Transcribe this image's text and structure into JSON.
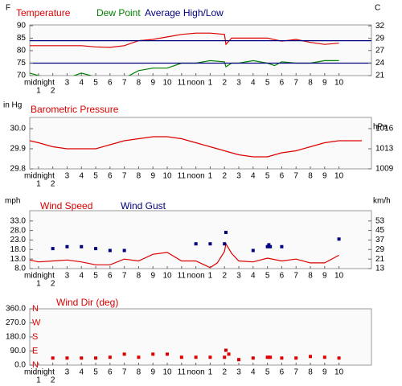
{
  "chart_data": [
    {
      "type": "line",
      "unit_left": "F",
      "unit_right": "C",
      "xlim": [
        0.39,
        24.27
      ],
      "xticks": [
        {
          "value": 0,
          "label": "midnight"
        },
        1,
        2,
        3,
        4,
        5,
        6,
        7,
        8,
        9,
        10,
        11,
        {
          "value": 12,
          "label": "noon"
        },
        {
          "value": 13,
          "label": "1"
        },
        {
          "value": 14,
          "label": "2"
        },
        {
          "value": 15,
          "label": "3"
        },
        {
          "value": 16,
          "label": "4"
        },
        {
          "value": 17,
          "label": "5"
        },
        {
          "value": 18,
          "label": "6"
        },
        {
          "value": 19,
          "label": "7"
        },
        {
          "value": 20,
          "label": "8"
        },
        {
          "value": 21,
          "label": "9"
        },
        {
          "value": 22,
          "label": "10"
        }
      ],
      "ylim": [
        70,
        90.3
      ],
      "yticks": [
        90,
        85,
        80,
        75,
        70
      ],
      "y2lim": [
        21.1,
        32.4
      ],
      "y2ticks": [
        {
          "value": 32.2,
          "label": "32"
        },
        {
          "value": 29.4,
          "label": "29"
        },
        {
          "value": 26.7,
          "label": "27"
        },
        {
          "value": 23.9,
          "label": "24"
        },
        {
          "value": 21.1,
          "label": "21"
        }
      ],
      "series": [
        {
          "name": "Temperature",
          "color": "#dd0000",
          "x": [
            0.39,
            1,
            2,
            3,
            4,
            5,
            6,
            7,
            8,
            9,
            10,
            11,
            12,
            13,
            14,
            14.1,
            14.5,
            15,
            16,
            17,
            18,
            19,
            20,
            21,
            22
          ],
          "values": [
            82,
            82,
            82,
            82,
            82,
            81.5,
            81.3,
            82,
            84,
            84.5,
            85.5,
            86.5,
            87,
            87,
            86.5,
            82.5,
            85,
            85,
            85,
            85,
            83.8,
            84.5,
            83.3,
            82.5,
            83
          ]
        },
        {
          "name": "Dew Point",
          "color": "#008000",
          "x": [
            0.39,
            1,
            2,
            3,
            4,
            5,
            6,
            7,
            8,
            9,
            10,
            11,
            12,
            13,
            14,
            14.1,
            14.5,
            15,
            16,
            17,
            17.5,
            18,
            19,
            20,
            21,
            22
          ],
          "values": [
            71,
            70,
            69,
            69,
            71,
            69.5,
            69,
            69,
            72,
            73,
            73,
            75,
            75,
            76,
            75.5,
            73.5,
            75,
            75,
            76,
            75,
            74,
            75.5,
            75,
            75,
            76,
            76
          ]
        },
        {
          "name": "Average High/Low",
          "color": "#000080",
          "x": [
            0.39,
            24.27
          ],
          "values": [
            84,
            84
          ],
          "low": [
            75,
            75
          ]
        }
      ]
    },
    {
      "type": "line",
      "title": "Barometric Pressure",
      "unit_left": "in Hg",
      "unit_right": "hPa",
      "xlim": [
        0.39,
        24.27
      ],
      "xticks": [
        {
          "value": 0,
          "label": "midnight"
        },
        1,
        2,
        3,
        4,
        5,
        6,
        7,
        8,
        9,
        10,
        11,
        {
          "value": 12,
          "label": "noon"
        },
        {
          "value": 13,
          "label": "1"
        },
        {
          "value": 14,
          "label": "2"
        },
        {
          "value": 15,
          "label": "3"
        },
        {
          "value": 16,
          "label": "4"
        },
        {
          "value": 17,
          "label": "5"
        },
        {
          "value": 18,
          "label": "6"
        },
        {
          "value": 19,
          "label": "7"
        },
        {
          "value": 20,
          "label": "8"
        },
        {
          "value": 21,
          "label": "9"
        },
        {
          "value": 22,
          "label": "10"
        }
      ],
      "ylim": [
        29.8,
        30.056
      ],
      "yticks": [
        {
          "value": 30,
          "label": "30.0"
        },
        29.9,
        29.8
      ],
      "y2lim": [
        1009.1,
        1017.8
      ],
      "y2ticks": [
        {
          "value": 1015.9,
          "label": "1016"
        },
        {
          "value": 1012.5,
          "label": "1013"
        },
        {
          "value": 1009.1,
          "label": "1009"
        }
      ],
      "series": [
        {
          "color": "#dd0000",
          "x": [
            0.39,
            1,
            2,
            3,
            4,
            5,
            6,
            7,
            8,
            9,
            10,
            11,
            12,
            13,
            14,
            14.5,
            15,
            16,
            17,
            18,
            19,
            20,
            21,
            22,
            23,
            23.6
          ],
          "values": [
            29.94,
            29.93,
            29.91,
            29.9,
            29.9,
            29.9,
            29.92,
            29.94,
            29.95,
            29.96,
            29.96,
            29.95,
            29.93,
            29.91,
            29.89,
            29.88,
            29.87,
            29.86,
            29.86,
            29.88,
            29.89,
            29.91,
            29.93,
            29.94,
            29.94,
            29.94
          ]
        }
      ]
    },
    {
      "type": "line",
      "unit_left": "mph",
      "unit_right": "km/h",
      "xlim": [
        0.39,
        24.27
      ],
      "xticks": [
        {
          "value": 0,
          "label": "midnight"
        },
        1,
        2,
        3,
        4,
        5,
        6,
        7,
        8,
        9,
        10,
        11,
        {
          "value": 12,
          "label": "noon"
        },
        {
          "value": 13,
          "label": "1"
        },
        {
          "value": 14,
          "label": "2"
        },
        {
          "value": 15,
          "label": "3"
        },
        {
          "value": 16,
          "label": "4"
        },
        {
          "value": 17,
          "label": "5"
        },
        {
          "value": 18,
          "label": "6"
        },
        {
          "value": 19,
          "label": "7"
        },
        {
          "value": 20,
          "label": "8"
        },
        {
          "value": 21,
          "label": "9"
        },
        {
          "value": 22,
          "label": "10"
        }
      ],
      "ylim": [
        8,
        38.4
      ],
      "yticks": [
        {
          "value": 33,
          "label": "33.0"
        },
        {
          "value": 28,
          "label": "28.0"
        },
        {
          "value": 23,
          "label": "23.0"
        },
        {
          "value": 18,
          "label": "18.0"
        },
        {
          "value": 13,
          "label": "13.0"
        },
        {
          "value": 8,
          "label": "8.0"
        }
      ],
      "y2lim": [
        12.9,
        61.8
      ],
      "y2ticks": [
        {
          "value": 53.1,
          "label": "53"
        },
        {
          "value": 45.1,
          "label": "45"
        },
        {
          "value": 37,
          "label": "37"
        },
        {
          "value": 29,
          "label": "29"
        },
        {
          "value": 20.9,
          "label": "21"
        },
        {
          "value": 12.9,
          "label": "13"
        }
      ],
      "series": [
        {
          "name": "Wind Speed",
          "color": "#dd0000",
          "x": [
            0.39,
            1,
            2,
            3,
            4,
            5,
            6,
            7,
            8,
            9,
            10,
            11,
            12,
            13,
            13.5,
            14,
            14.1,
            14.5,
            15,
            16,
            17,
            18,
            19,
            20,
            21,
            22
          ],
          "values": [
            12.5,
            11.5,
            12,
            12.5,
            11.5,
            10,
            10,
            13,
            12,
            15.5,
            16.5,
            12,
            12,
            8.5,
            11,
            17,
            21,
            16,
            12,
            11.5,
            13.5,
            12,
            13,
            11,
            11,
            15
          ]
        },
        {
          "name": "Wind Gust",
          "color": "#000080",
          "type": "scatter",
          "x": [
            2,
            3,
            4,
            5,
            6,
            7,
            12,
            13,
            14,
            14.1,
            16,
            17,
            17.1,
            17.2,
            18,
            22
          ],
          "values": [
            18.5,
            19.5,
            19.5,
            18.5,
            17.5,
            17.5,
            21,
            21,
            21,
            27,
            17.5,
            19.5,
            20.5,
            19.5,
            19.5,
            23.5
          ]
        }
      ]
    },
    {
      "type": "scatter",
      "title": "Wind Dir (deg)",
      "xlim": [
        0.39,
        24.27
      ],
      "xticks": [
        {
          "value": 0,
          "label": "midnight"
        },
        1,
        2,
        3,
        4,
        5,
        6,
        7,
        8,
        9,
        10,
        11,
        {
          "value": 12,
          "label": "noon"
        },
        {
          "value": 13,
          "label": "1"
        },
        {
          "value": 14,
          "label": "2"
        },
        {
          "value": 15,
          "label": "3"
        },
        {
          "value": 16,
          "label": "4"
        },
        {
          "value": 17,
          "label": "5"
        },
        {
          "value": 18,
          "label": "6"
        },
        {
          "value": 19,
          "label": "7"
        },
        {
          "value": 20,
          "label": "8"
        },
        {
          "value": 21,
          "label": "9"
        },
        {
          "value": 22,
          "label": "10"
        }
      ],
      "ylim": [
        0,
        360
      ],
      "yticks": [
        {
          "value": 360,
          "label": "360.0"
        },
        {
          "value": 270,
          "label": "270.0"
        },
        {
          "value": 180,
          "label": "180.0"
        },
        {
          "value": 90,
          "label": "90.0"
        },
        {
          "value": 0,
          "label": "0.0"
        }
      ],
      "compass_labels": [
        "N",
        "W",
        "S",
        "E",
        "N"
      ],
      "series": [
        {
          "color": "#dd0000",
          "x": [
            2,
            3,
            4,
            5,
            6,
            7,
            8,
            9,
            10,
            11,
            12,
            13,
            14,
            14.1,
            14.3,
            15,
            16,
            17,
            17.1,
            17.2,
            18,
            19,
            20,
            21,
            22
          ],
          "values": [
            45,
            45,
            45,
            45,
            50,
            70,
            50,
            70,
            70,
            50,
            50,
            50,
            50,
            95,
            70,
            35,
            45,
            50,
            50,
            50,
            45,
            45,
            55,
            50,
            45
          ]
        }
      ]
    }
  ]
}
